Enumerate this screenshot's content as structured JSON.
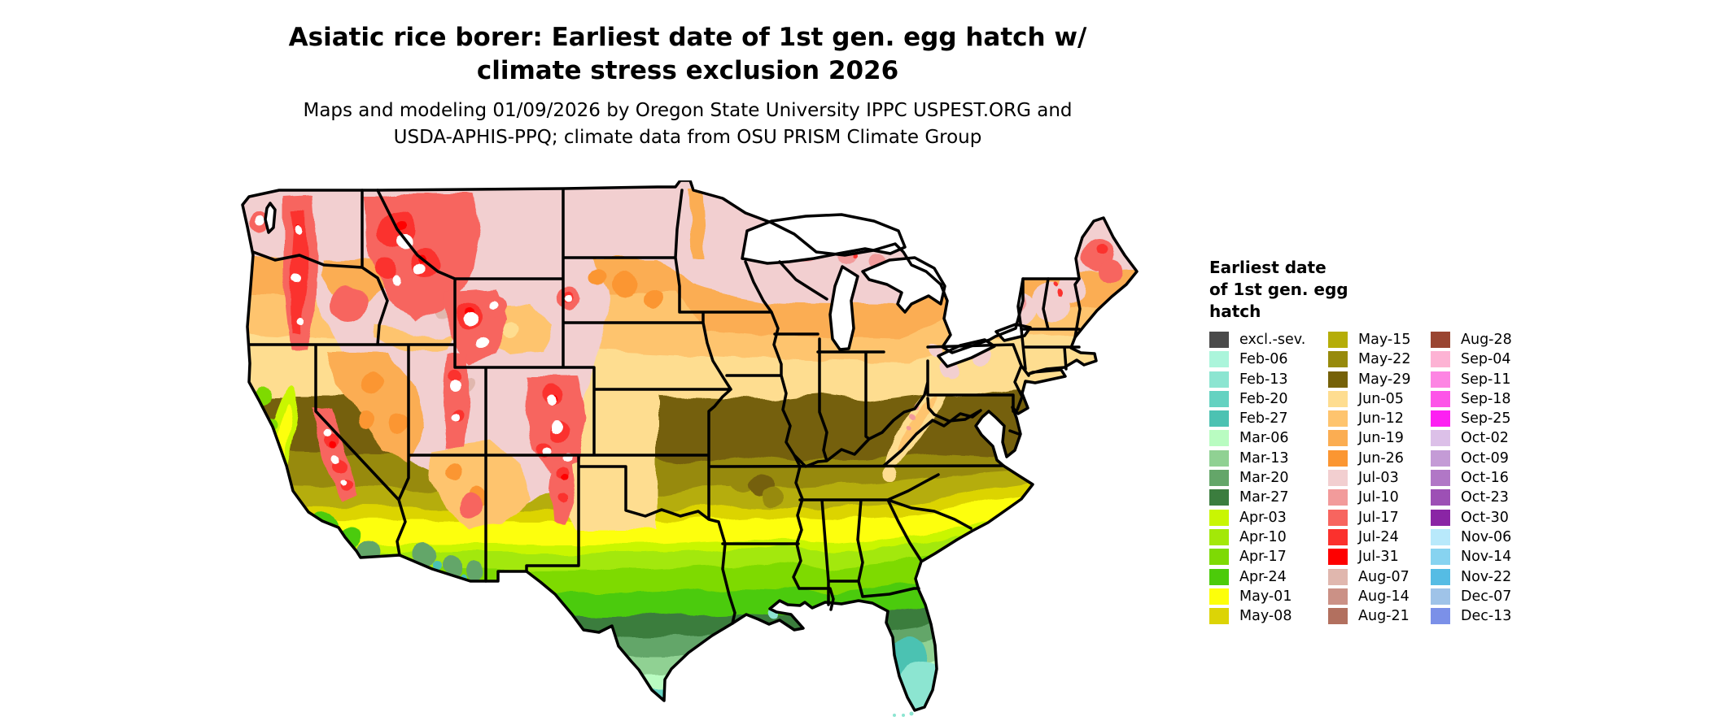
{
  "title": "Asiatic rice borer: Earliest date of 1st gen. egg hatch w/\nclimate stress exclusion 2026",
  "subtitle": "Maps and modeling 01/09/2026 by Oregon State University IPPC USPEST.ORG and\nUSDA-APHIS-PPQ; climate data from OSU PRISM Climate Group",
  "legend": {
    "title": "Earliest date\nof 1st gen. egg\nhatch",
    "columns": [
      [
        {
          "label": "excl.-sev.",
          "color": "#4a4a4a"
        },
        {
          "label": "Feb-06",
          "color": "#abf5db"
        },
        {
          "label": "Feb-13",
          "color": "#8ce5d1"
        },
        {
          "label": "Feb-20",
          "color": "#65d2c1"
        },
        {
          "label": "Feb-27",
          "color": "#4cc2b2"
        },
        {
          "label": "Mar-06",
          "color": "#b9fcc1"
        },
        {
          "label": "Mar-13",
          "color": "#90d193"
        },
        {
          "label": "Mar-20",
          "color": "#64a669"
        },
        {
          "label": "Mar-27",
          "color": "#3b7d3e"
        },
        {
          "label": "Apr-03",
          "color": "#c9f602"
        },
        {
          "label": "Apr-10",
          "color": "#a3e808"
        },
        {
          "label": "Apr-17",
          "color": "#7eda04"
        },
        {
          "label": "Apr-24",
          "color": "#4ccb0a"
        },
        {
          "label": "May-01",
          "color": "#fdff0a"
        },
        {
          "label": "May-08",
          "color": "#dcd406"
        }
      ],
      [
        {
          "label": "May-15",
          "color": "#b5ad08"
        },
        {
          "label": "May-22",
          "color": "#978a0c"
        },
        {
          "label": "May-29",
          "color": "#756108"
        },
        {
          "label": "Jun-05",
          "color": "#fedd90"
        },
        {
          "label": "Jun-12",
          "color": "#fec46e"
        },
        {
          "label": "Jun-19",
          "color": "#fbad52"
        },
        {
          "label": "Jun-26",
          "color": "#fb9632"
        },
        {
          "label": "Jul-03",
          "color": "#f2cfd0"
        },
        {
          "label": "Jul-10",
          "color": "#f29b9b"
        },
        {
          "label": "Jul-17",
          "color": "#f7655f"
        },
        {
          "label": "Jul-24",
          "color": "#fb312d"
        },
        {
          "label": "Jul-31",
          "color": "#fe0000"
        },
        {
          "label": "Aug-07",
          "color": "#e0b7ae"
        },
        {
          "label": "Aug-14",
          "color": "#cb9186"
        },
        {
          "label": "Aug-21",
          "color": "#b2705f"
        }
      ],
      [
        {
          "label": "Aug-28",
          "color": "#9a4531"
        },
        {
          "label": "Sep-04",
          "color": "#fdb3d4"
        },
        {
          "label": "Sep-11",
          "color": "#fd85e3"
        },
        {
          "label": "Sep-18",
          "color": "#fd55e8"
        },
        {
          "label": "Sep-25",
          "color": "#fd20f2"
        },
        {
          "label": "Oct-02",
          "color": "#dcc0e8"
        },
        {
          "label": "Oct-09",
          "color": "#c49bd6"
        },
        {
          "label": "Oct-16",
          "color": "#b177c6"
        },
        {
          "label": "Oct-23",
          "color": "#9d50b5"
        },
        {
          "label": "Oct-30",
          "color": "#8a25a5"
        },
        {
          "label": "Nov-06",
          "color": "#b8e9fb"
        },
        {
          "label": "Nov-14",
          "color": "#87d3f0"
        },
        {
          "label": "Nov-22",
          "color": "#55bce4"
        },
        {
          "label": "Dec-07",
          "color": "#9fc3e8"
        },
        {
          "label": "Dec-13",
          "color": "#7b90e8"
        }
      ]
    ]
  },
  "map": {
    "region": "Contiguous United States",
    "border_color": "#000000",
    "no_data_color": "#ffffff"
  }
}
